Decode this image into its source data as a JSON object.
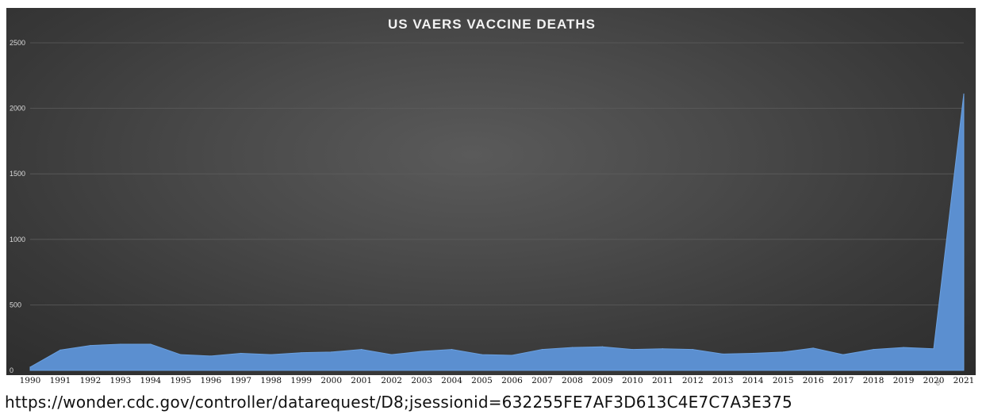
{
  "page": {
    "source_url": "https://wonder.cdc.gov/controller/datarequest/D8;jsessionid=632255FE7AF3D613C4E7C7A3E375",
    "page_number": "8"
  },
  "colors": {
    "background": "#3f3f3f",
    "area_fill": "#5b8fd0",
    "area_stroke": "#6aa0e0",
    "gridline": "#5c5c5c",
    "title_text": "#f2f2f2",
    "axis_text": "#d9d9d9"
  },
  "chart_data": {
    "type": "area",
    "title": "US VAERS VACCINE DEATHS",
    "xlabel": "",
    "ylabel": "",
    "ylim": [
      0,
      2500
    ],
    "yticks": [
      "0",
      "500",
      "1000",
      "1500",
      "2000",
      "2500"
    ],
    "grid": true,
    "legend": "none",
    "categories": [
      "1990",
      "1991",
      "1992",
      "1993",
      "1994",
      "1995",
      "1996",
      "1997",
      "1998",
      "1999",
      "2000",
      "2001",
      "2002",
      "2003",
      "2004",
      "2005",
      "2006",
      "2007",
      "2008",
      "2009",
      "2010",
      "2011",
      "2012",
      "2013",
      "2014",
      "2015",
      "2016",
      "2017",
      "2018",
      "2019",
      "2020",
      "2021"
    ],
    "series": [
      {
        "values": [
          25,
          155,
          190,
          200,
          200,
          120,
          110,
          130,
          120,
          135,
          140,
          160,
          120,
          145,
          160,
          120,
          115,
          160,
          175,
          180,
          160,
          165,
          160,
          125,
          130,
          140,
          170,
          120,
          160,
          175,
          165,
          2110
        ]
      }
    ]
  }
}
